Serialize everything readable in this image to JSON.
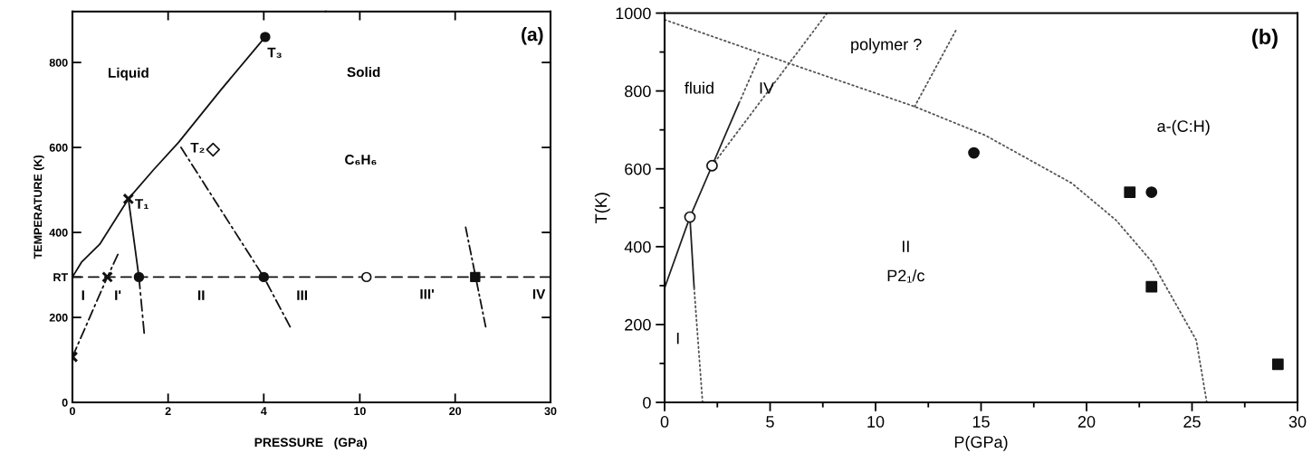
{
  "chart_data": [
    {
      "type": "line",
      "xlabel": "PRESSURE   (GPa)",
      "ylabel": "TEMPERATURE (K)",
      "xlim": [
        0,
        5.3
      ],
      "ylim": [
        0,
        920
      ],
      "xticks": [
        0,
        2,
        4
      ],
      "yticks": [
        0,
        200,
        {
          "value": 295,
          "label": "RT"
        },
        400,
        600,
        800
      ],
      "series": [
        {
          "x": [
            0,
            0.19,
            0.57,
            1.17,
            1.7,
            2.22,
            3.1,
            4.03
          ],
          "values": [
            295,
            330,
            372,
            479,
            548,
            612,
            735,
            860
          ],
          "color": "#111111",
          "line_style": "solid"
        },
        {
          "x": [
            1.17,
            1.39
          ],
          "values": [
            479,
            295
          ],
          "color": "#111111",
          "line_style": "solid"
        },
        {
          "x": [
            1.39,
            1.5
          ],
          "values": [
            295,
            163
          ],
          "color": "#111111",
          "line_style": "dashdot"
        },
        {
          "x": [
            0,
            0.73,
            0.95
          ],
          "values": [
            107,
            295,
            348
          ],
          "color": "#111111",
          "line_style": "dashdot"
        },
        {
          "x": [
            2.27,
            4.0,
            4.55
          ],
          "values": [
            600,
            295,
            178
          ],
          "color": "#111111",
          "line_style": "dashdot"
        },
        {
          "x": [
            0,
            5.3
          ],
          "values": [
            295,
            295
          ],
          "color": "#111111",
          "line_style": "dashed"
        },
        {
          "type": "scatter",
          "x": [
            0,
            0.73,
            1.17
          ],
          "values": [
            107,
            295,
            479
          ],
          "color": "#111111",
          "marker": "cross"
        },
        {
          "type": "scatter",
          "x": [
            1.39,
            4.0,
            4.03
          ],
          "values": [
            295,
            295,
            860
          ],
          "color": "#111111",
          "marker": "circle"
        },
        {
          "type": "scatter",
          "x": [
            2.94
          ],
          "values": [
            595
          ],
          "color": "#ffffff",
          "marker": "diamond"
        }
      ],
      "annotations": [
        "Liquid",
        "T₁",
        "T₂",
        "T₃",
        "I",
        "I'",
        "II",
        "III"
      ]
    },
    {
      "type": "line",
      "title": "(a)",
      "xlim": [
        6.45,
        30
      ],
      "ylim": [
        0,
        920
      ],
      "xticks": [
        10,
        20,
        30
      ],
      "yticks": [
        200,
        400,
        600,
        800
      ],
      "tick_labels": "x",
      "series": [
        {
          "x": [
            6.45,
            30
          ],
          "values": [
            295,
            295
          ],
          "color": "#111111",
          "line_style": "dashed"
        },
        {
          "x": [
            21.1,
            23.2
          ],
          "values": [
            412,
            178
          ],
          "color": "#111111",
          "line_style": "dashdot"
        },
        {
          "type": "scatter",
          "x": [
            10.7
          ],
          "values": [
            295
          ],
          "color": "#ffffff",
          "marker": "circle"
        },
        {
          "type": "scatter",
          "x": [
            22.1
          ],
          "values": [
            295
          ],
          "color": "#111111",
          "marker": "square"
        }
      ],
      "annotations": [
        "Solid",
        "C₆H₆",
        "III'",
        "IV"
      ]
    },
    {
      "type": "line",
      "title": "(b)",
      "xlabel": "P(GPa)",
      "ylabel": "T(K)",
      "xlim": [
        0,
        30
      ],
      "ylim": [
        0,
        1000
      ],
      "xticks": [
        0,
        {
          "value": 2.5,
          "label": null
        },
        5,
        {
          "value": 7.5,
          "label": null
        },
        10,
        {
          "value": 12.5,
          "label": null
        },
        15,
        {
          "value": 17.5,
          "label": null
        },
        20,
        {
          "value": 22.5,
          "label": null
        },
        25,
        {
          "value": 27.5,
          "label": null
        },
        30
      ],
      "yticks": [
        0,
        {
          "value": 100,
          "label": null
        },
        200,
        {
          "value": 300,
          "label": null
        },
        400,
        {
          "value": 500,
          "label": null
        },
        600,
        {
          "value": 700,
          "label": null
        },
        800,
        {
          "value": 900,
          "label": null
        },
        1000
      ],
      "series": [
        {
          "x": [
            0,
            1.2,
            2.25,
            3.53
          ],
          "values": [
            294,
            476,
            608,
            769
          ],
          "color": "#222222",
          "line_style": "solid"
        },
        {
          "x": [
            3.53,
            4.45
          ],
          "values": [
            769,
            883
          ],
          "color": "#555555",
          "line_style": "dotted"
        },
        {
          "x": [
            1.2,
            1.4
          ],
          "values": [
            476,
            294
          ],
          "color": "#222222",
          "line_style": "solid"
        },
        {
          "x": [
            1.4,
            1.8
          ],
          "values": [
            294,
            0
          ],
          "color": "#555555",
          "line_style": "dotted"
        },
        {
          "x": [
            2.25,
            7.7
          ],
          "values": [
            608,
            1000
          ],
          "color": "#555555",
          "line_style": "dotted"
        },
        {
          "x": [
            0,
            6.75,
            11.85,
            15.2,
            19.3,
            21.4,
            23.1,
            25.2,
            25.7
          ],
          "values": [
            983,
            855,
            760,
            686,
            563,
            468,
            361,
            160,
            0
          ],
          "color": "#555555",
          "line_style": "dotted"
        },
        {
          "x": [
            11.85,
            13.8
          ],
          "values": [
            760,
            955
          ],
          "color": "#555555",
          "line_style": "dotted"
        },
        {
          "type": "scatter",
          "x": [
            1.2,
            2.25
          ],
          "values": [
            476,
            608
          ],
          "color": "#ffffff",
          "marker": "circle"
        },
        {
          "type": "scatter",
          "x": [
            14.66,
            23.08
          ],
          "values": [
            641,
            540
          ],
          "color": "#111111",
          "marker": "circle"
        },
        {
          "type": "scatter",
          "x": [
            22.05,
            23.08,
            29.07
          ],
          "values": [
            540,
            297,
            98
          ],
          "color": "#111111",
          "marker": "square"
        }
      ],
      "annotations": [
        "fluid",
        "IV",
        "polymer ?",
        "a-(C:H)",
        "II",
        "P2₁/c",
        "I"
      ]
    }
  ]
}
